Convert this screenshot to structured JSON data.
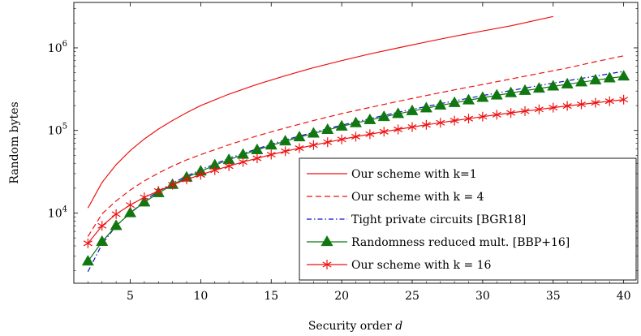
{
  "chart_data": {
    "type": "line",
    "title": "",
    "xlabel": "Security order d",
    "ylabel": "Random bytes",
    "xlim": [
      1,
      41
    ],
    "ylim_log10": [
      3.15,
      6.55
    ],
    "y_scale": "log",
    "grid": false,
    "legend_position": "bottom-right",
    "x_ticks": [
      5,
      10,
      15,
      20,
      25,
      30,
      35,
      40
    ],
    "y_ticks": [
      {
        "value": 10000,
        "base": "10",
        "exp": "4"
      },
      {
        "value": 100000,
        "base": "10",
        "exp": "5"
      },
      {
        "value": 1000000,
        "base": "10",
        "exp": "6"
      }
    ],
    "series": [
      {
        "name": "Our scheme with k=1",
        "color": "#ee1111",
        "dash": "solid",
        "marker": "none",
        "x": [
          2,
          3,
          4,
          5,
          6,
          7,
          8,
          9,
          10,
          12,
          14,
          16,
          18,
          20,
          22,
          24,
          26,
          28,
          30,
          32,
          35
        ],
        "y": [
          11500,
          23500,
          38500,
          57000,
          79000,
          104000,
          132000,
          164000,
          200000,
          275000,
          362000,
          460000,
          575000,
          700000,
          845000,
          1000000,
          1180000,
          1380000,
          1600000,
          1850000,
          2400000
        ]
      },
      {
        "name": "Our scheme with k = 4",
        "color": "#ee1111",
        "dash": "dashed",
        "marker": "none",
        "x": [
          2,
          3,
          4,
          5,
          6,
          7,
          8,
          9,
          10,
          12,
          14,
          16,
          18,
          20,
          22,
          24,
          26,
          28,
          30,
          32,
          34,
          36,
          38,
          40
        ],
        "y": [
          5200,
          9800,
          14000,
          19000,
          24500,
          30500,
          37000,
          44000,
          51000,
          67000,
          86000,
          107000,
          132000,
          160000,
          190000,
          225000,
          265000,
          310000,
          360000,
          420000,
          490000,
          570000,
          680000,
          800000
        ]
      },
      {
        "name": "Tight private circuits [BGR18]",
        "color": "#1111cc",
        "dash": "dashdot",
        "marker": "none",
        "x": [
          2,
          3,
          4,
          5,
          6,
          7,
          8,
          9,
          10,
          12,
          14,
          16,
          18,
          20,
          22,
          24,
          26,
          28,
          30,
          32,
          34,
          36,
          38,
          40
        ],
        "y": [
          1950,
          4200,
          7000,
          10000,
          14000,
          18500,
          23000,
          28000,
          33500,
          46000,
          60000,
          77000,
          95000,
          116000,
          139000,
          166000,
          195000,
          228000,
          265000,
          305000,
          350000,
          400000,
          455000,
          520000
        ]
      },
      {
        "name": "Randomness reduced mult. [BBP+16]",
        "color": "#117711",
        "dash": "solid",
        "marker": "triangle",
        "x": [
          2,
          3,
          4,
          5,
          6,
          7,
          8,
          9,
          10,
          11,
          12,
          13,
          14,
          15,
          16,
          17,
          18,
          19,
          20,
          21,
          22,
          23,
          24,
          25,
          26,
          27,
          28,
          29,
          30,
          31,
          32,
          33,
          34,
          35,
          36,
          37,
          38,
          39,
          40
        ],
        "y": [
          2600,
          4500,
          7000,
          10000,
          13500,
          17500,
          22000,
          27000,
          32000,
          38000,
          44000,
          51000,
          58000,
          66000,
          74000,
          83000,
          92000,
          102000,
          112000,
          123000,
          134000,
          146000,
          159000,
          172000,
          186000,
          201000,
          216000,
          232000,
          249000,
          266000,
          284000,
          303000,
          322000,
          342000,
          363000,
          384000,
          406000,
          429000,
          452000
        ]
      },
      {
        "name": "Our scheme with k = 16",
        "color": "#ee1111",
        "dash": "solid",
        "marker": "asterisk",
        "x": [
          2,
          3,
          4,
          5,
          6,
          7,
          8,
          9,
          10,
          11,
          12,
          13,
          14,
          15,
          16,
          17,
          18,
          19,
          20,
          21,
          22,
          23,
          24,
          25,
          26,
          27,
          28,
          29,
          30,
          31,
          32,
          33,
          34,
          35,
          36,
          37,
          38,
          39,
          40
        ],
        "y": [
          4300,
          7000,
          9700,
          12500,
          15500,
          18500,
          22000,
          25500,
          29000,
          33000,
          37000,
          41500,
          46000,
          51000,
          56000,
          61000,
          66500,
          72000,
          78000,
          84000,
          90000,
          96500,
          103000,
          110000,
          117000,
          124000,
          131500,
          139000,
          147000,
          155000,
          163000,
          171500,
          180000,
          189000,
          198000,
          207000,
          216500,
          226000,
          236000
        ]
      }
    ]
  }
}
